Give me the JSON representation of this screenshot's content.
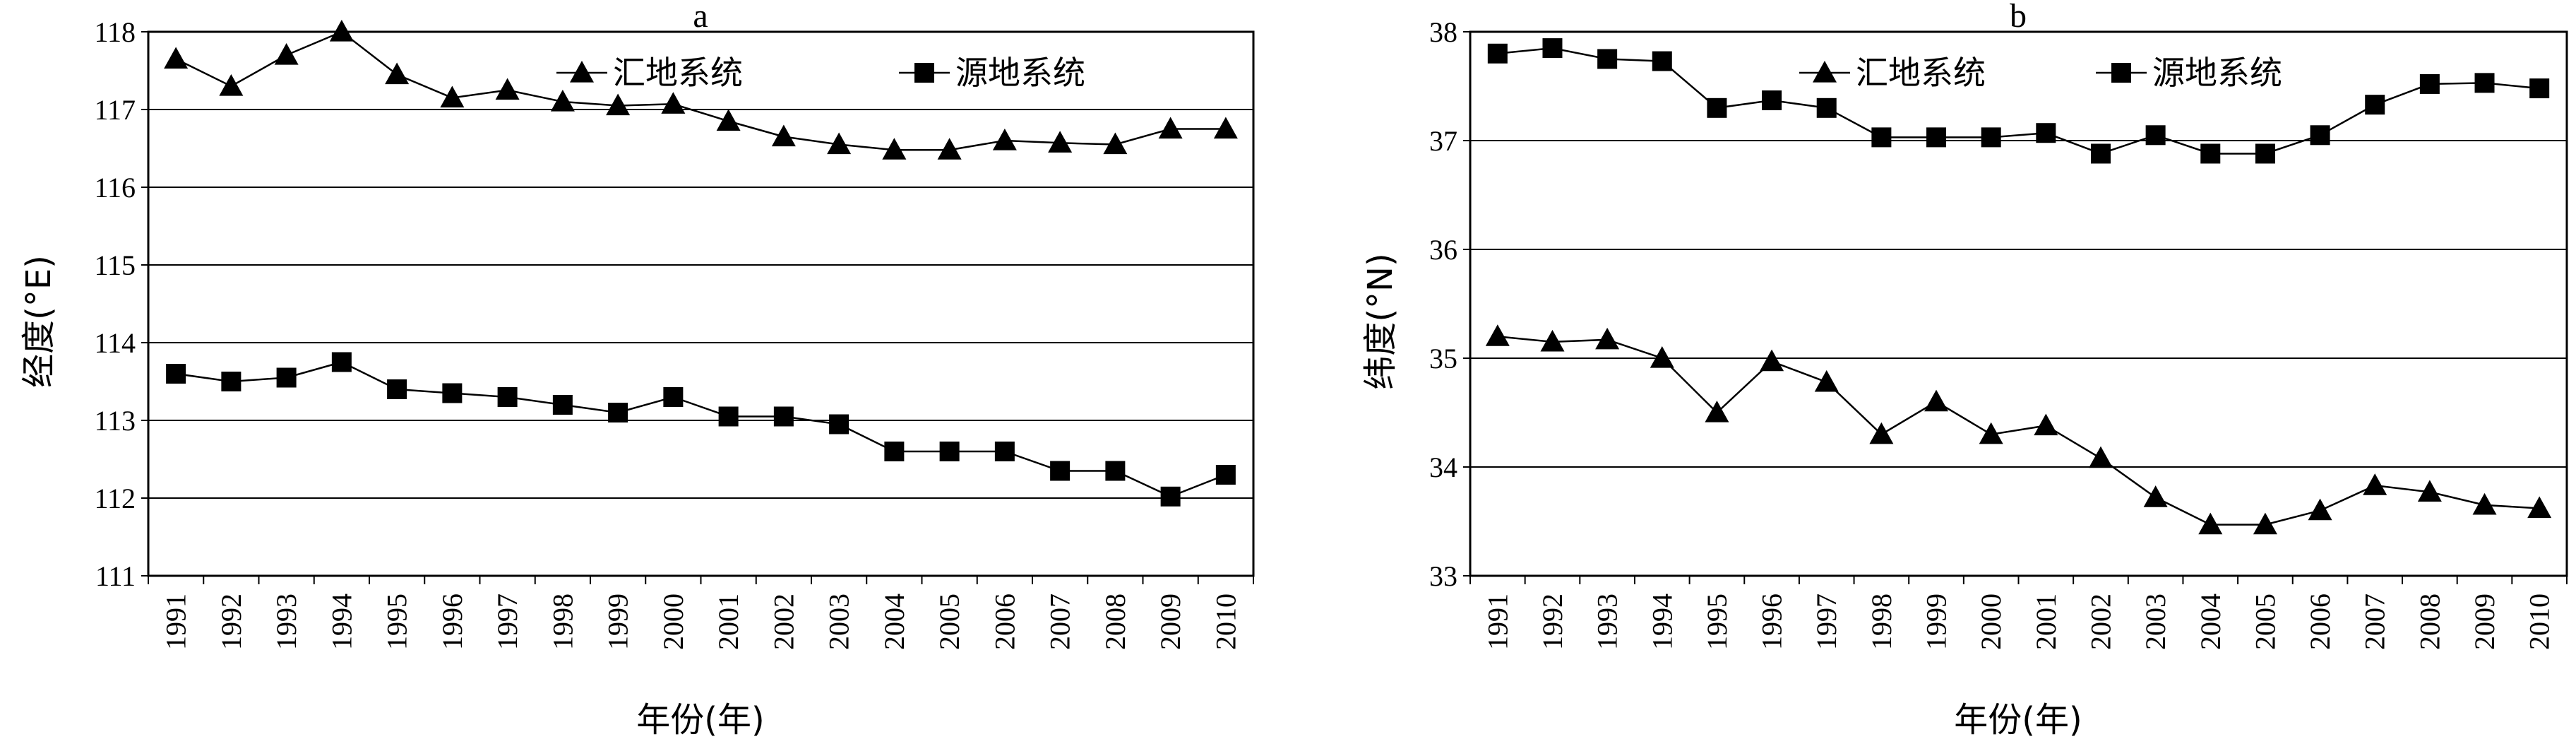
{
  "chart_data": [
    {
      "type": "line",
      "title": "a",
      "xlabel": "年份(年)",
      "ylabel": "经度(°E)",
      "ylim": [
        111,
        118
      ],
      "yticks": [
        "111",
        "112",
        "113",
        "114",
        "115",
        "116",
        "117",
        "118"
      ],
      "grid": "horizontal",
      "categories": [
        "1991",
        "1992",
        "1993",
        "1994",
        "1995",
        "1996",
        "1997",
        "1998",
        "1999",
        "2000",
        "2001",
        "2002",
        "2003",
        "2004",
        "2005",
        "2006",
        "2007",
        "2008",
        "2009",
        "2010"
      ],
      "series": [
        {
          "name": "汇地系统",
          "marker": "triangle",
          "values": [
            117.65,
            117.3,
            117.7,
            118.0,
            117.45,
            117.15,
            117.25,
            117.1,
            117.05,
            117.07,
            116.85,
            116.65,
            116.55,
            116.48,
            116.48,
            116.6,
            116.57,
            116.55,
            116.75,
            116.75
          ]
        },
        {
          "name": "源地系统",
          "marker": "square",
          "values": [
            113.6,
            113.5,
            113.55,
            113.75,
            113.4,
            113.35,
            113.3,
            113.2,
            113.1,
            113.3,
            113.05,
            113.05,
            112.95,
            112.6,
            112.6,
            112.6,
            112.35,
            112.35,
            112.02,
            112.3
          ]
        }
      ],
      "legend": "top-right"
    },
    {
      "type": "line",
      "title": "b",
      "xlabel": "年份(年)",
      "ylabel": "纬度(°N)",
      "ylim": [
        33,
        38
      ],
      "yticks": [
        "33",
        "34",
        "35",
        "36",
        "37",
        "38"
      ],
      "grid": "horizontal",
      "categories": [
        "1991",
        "1992",
        "1993",
        "1994",
        "1995",
        "1996",
        "1997",
        "1998",
        "1999",
        "2000",
        "2001",
        "2002",
        "2003",
        "2004",
        "2005",
        "2006",
        "2007",
        "2008",
        "2009",
        "2010"
      ],
      "series": [
        {
          "name": "汇地系统",
          "marker": "triangle",
          "values": [
            35.2,
            35.15,
            35.17,
            35.0,
            34.5,
            34.97,
            34.78,
            34.3,
            34.6,
            34.3,
            34.38,
            34.08,
            33.72,
            33.47,
            33.47,
            33.6,
            33.83,
            33.77,
            33.65,
            33.62
          ]
        },
        {
          "name": "源地系统",
          "marker": "square",
          "values": [
            37.8,
            37.85,
            37.75,
            37.73,
            37.3,
            37.37,
            37.3,
            37.03,
            37.03,
            37.03,
            37.07,
            36.88,
            37.05,
            36.88,
            36.88,
            37.05,
            37.33,
            37.52,
            37.53,
            37.48
          ]
        }
      ],
      "legend": "top-right"
    }
  ]
}
